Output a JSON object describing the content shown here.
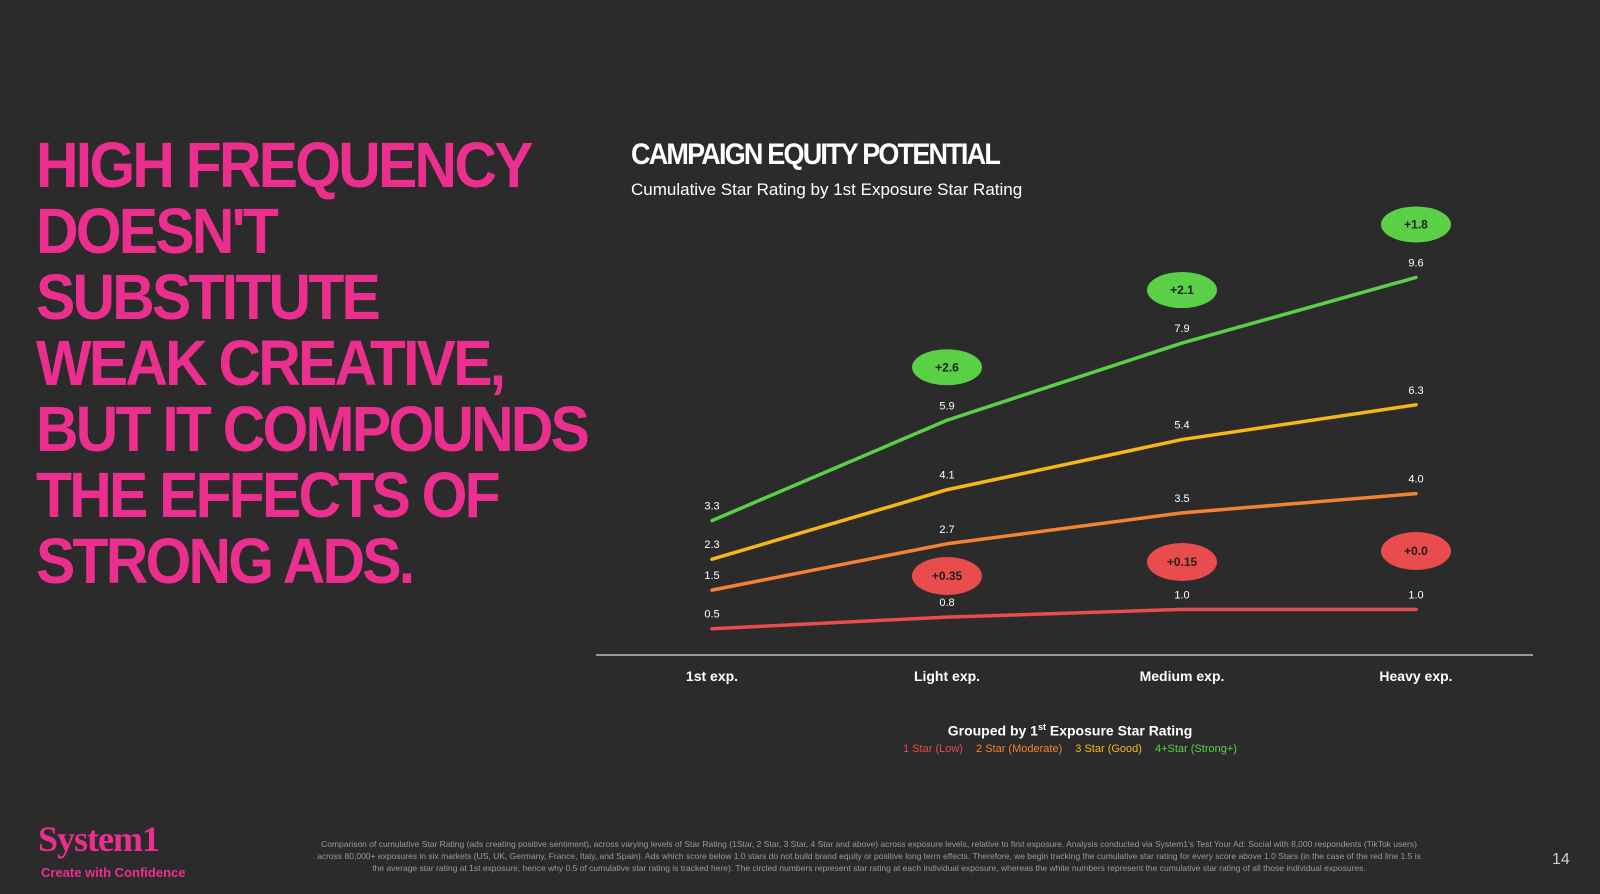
{
  "headline": [
    "HIGH FREQUENCY",
    "DOESN'T",
    "SUBSTITUTE",
    "WEAK CREATIVE,",
    "BUT IT COMPOUNDS",
    "THE EFFECTS OF",
    "STRONG ADS."
  ],
  "brand": {
    "logo": "System1",
    "tagline": "Create with Confidence",
    "accent": "#ec2f8f"
  },
  "page_number": "14",
  "footnote": [
    "Comparison of cumulative Star Rating (ads creating positive sentiment), across varying levels of Star Rating (1Star, 2 Star, 3 Star, 4 Star and above) across exposure levels, relative to first exposure. Analysis conducted via System1's Test Your Ad: Social with 8,000 respondents (TikTok users)",
    "across 80,000+ exposures in six markets (US, UK, Germany, France, Italy, and Spain). Ads which score below 1.0 stars do not build brand equity or positive long term effects. Therefore, we begin tracking the cumulative star rating for every score above 1.0 Stars (in the case of the red line 1.5 is",
    "the average star rating at 1st exposure, hence why 0.5 of cumulative star rating is tracked here). The circled numbers represent star rating at each individual exposure, whereas the white numbers represent the cumulative star rating of all those individual exposures."
  ],
  "chart_data": {
    "type": "line",
    "title": "CAMPAIGN EQUITY POTENTIAL",
    "subtitle": "Cumulative Star Rating by 1st Exposure Star Rating",
    "categories": [
      "1st exp.",
      "Light exp.",
      "Medium exp.",
      "Heavy exp."
    ],
    "legend_title_pre": "Grouped by 1",
    "legend_title_sup": "st",
    "legend_title_post": " Exposure Star Rating",
    "legend_placement": "bottom",
    "grid": false,
    "ylim": [
      0,
      10
    ],
    "series": [
      {
        "name": "1 Star (Low)",
        "color": "#e84c4c",
        "values": [
          0.5,
          0.8,
          1.0,
          1.0
        ],
        "labels": [
          "0.5",
          "0.8",
          "1.0",
          "1.0"
        ],
        "increments": [
          "+0.35",
          "+0.15",
          "+0.0"
        ]
      },
      {
        "name": "2 Star (Moderate)",
        "color": "#f58232",
        "values": [
          1.5,
          2.7,
          3.5,
          4.0
        ],
        "labels": [
          "1.5",
          "2.7",
          "3.5",
          "4.0"
        ],
        "increments": []
      },
      {
        "name": "3 Star (Good)",
        "color": "#f5b816",
        "values": [
          2.3,
          4.1,
          5.4,
          6.3
        ],
        "labels": [
          "2.3",
          "4.1",
          "5.4",
          "6.3"
        ],
        "increments": []
      },
      {
        "name": "4+Star (Strong+)",
        "color": "#5ad047",
        "values": [
          3.3,
          5.9,
          7.9,
          9.6
        ],
        "labels": [
          "3.3",
          "5.9",
          "7.9",
          "9.6"
        ],
        "increments": [
          "+2.6",
          "+2.1",
          "+1.8"
        ]
      }
    ]
  }
}
